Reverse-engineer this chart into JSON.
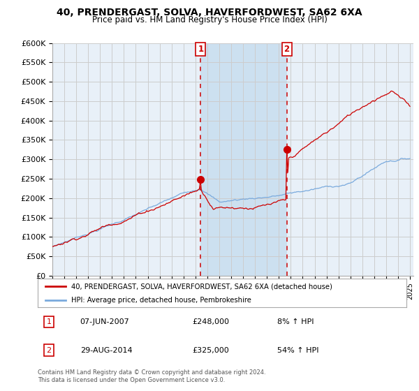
{
  "title": "40, PRENDERGAST, SOLVA, HAVERFORDWEST, SA62 6XA",
  "subtitle": "Price paid vs. HM Land Registry's House Price Index (HPI)",
  "ylabel_ticks": [
    "£0",
    "£50K",
    "£100K",
    "£150K",
    "£200K",
    "£250K",
    "£300K",
    "£350K",
    "£400K",
    "£450K",
    "£500K",
    "£550K",
    "£600K"
  ],
  "ylim": [
    0,
    600000
  ],
  "xlim": [
    1995,
    2025.3
  ],
  "legend_red": "40, PRENDERGAST, SOLVA, HAVERFORDWEST, SA62 6XA (detached house)",
  "legend_blue": "HPI: Average price, detached house, Pembrokeshire",
  "annotation1_label": "1",
  "annotation1_date": "07-JUN-2007",
  "annotation1_price": "£248,000",
  "annotation1_hpi": "8% ↑ HPI",
  "annotation2_label": "2",
  "annotation2_date": "29-AUG-2014",
  "annotation2_price": "£325,000",
  "annotation2_hpi": "54% ↑ HPI",
  "footer": "Contains HM Land Registry data © Crown copyright and database right 2024.\nThis data is licensed under the Open Government Licence v3.0.",
  "red_color": "#cc0000",
  "blue_color": "#7aaadd",
  "vline_color": "#cc0000",
  "grid_color": "#cccccc",
  "plot_bg_color": "#e8f0f8",
  "shade_bg_color": "#cce0f0",
  "vline1_x": 2007.44,
  "vline2_x": 2014.66,
  "sale1_x": 2007.44,
  "sale1_y": 248000,
  "sale2_x": 2014.66,
  "sale2_y": 325000
}
